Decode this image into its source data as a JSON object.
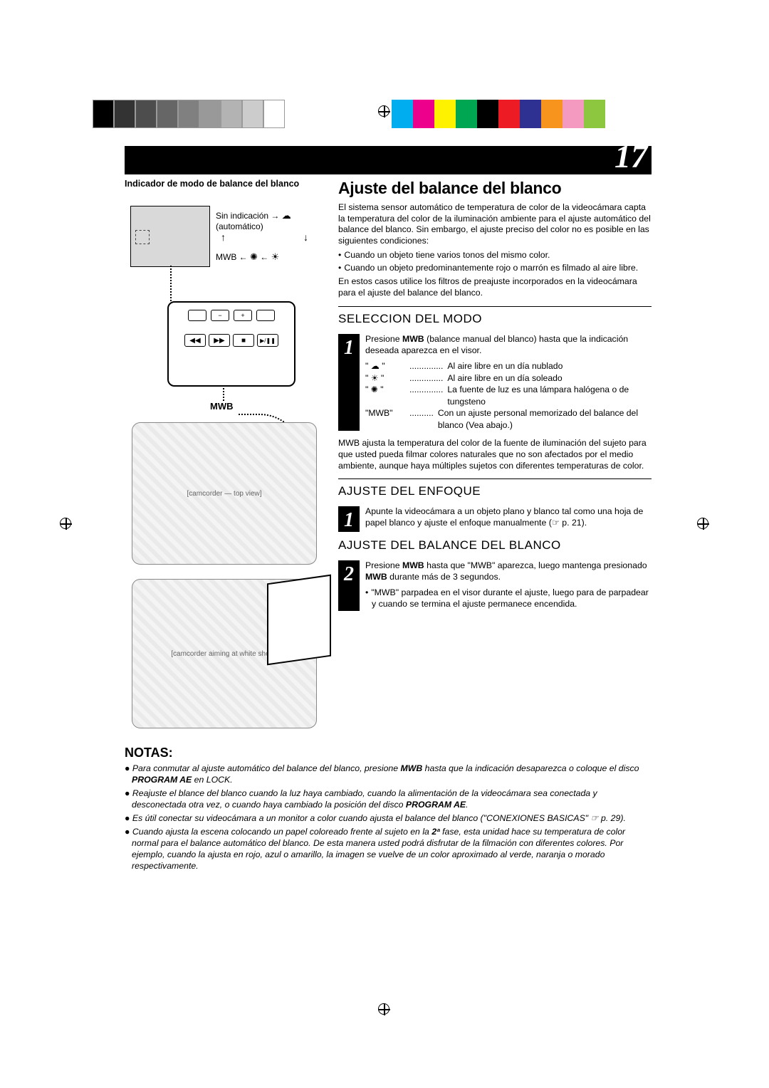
{
  "pageNumber": "17",
  "registration": {
    "leftBars": [
      "#000000",
      "#333333",
      "#4d4d4d",
      "#666666",
      "#808080",
      "#999999",
      "#b3b3b3",
      "#cccccc",
      "#ffffff"
    ],
    "rightBars": [
      "#00aeef",
      "#ec008c",
      "#fff200",
      "#00a651",
      "#000000",
      "#ed1c24",
      "#2e3192",
      "#f7941d",
      "#f49ac1",
      "#8dc63f"
    ]
  },
  "leftPanel": {
    "indicatorTitle": "Indicador de modo de balance del blanco",
    "sinIndicacion": "Sin indicación",
    "automatico": "(automático)",
    "mwbLine": "MWB",
    "mwbButton": "MWB",
    "controlPanel": {
      "row1": [
        "",
        "−",
        "+",
        ""
      ],
      "row2": [
        "◀◀",
        "▶▶",
        "■",
        "▶/❚❚"
      ]
    }
  },
  "main": {
    "title": "Ajuste del balance del blanco",
    "intro1": "El sistema sensor automático de temperatura de color de la videocámara capta la temperatura del color de la iluminación ambiente para el ajuste automático del balance del blanco. Sin embargo, el ajuste preciso del color no es posible en las siguientes condiciones:",
    "introBullets": [
      "Cuando un objeto tiene varios tonos del mismo color.",
      "Cuando un objeto predominantemente rojo o marrón es filmado al aire libre."
    ],
    "intro2": "En estos casos utilice los filtros de preajuste incorporados en la videocámara para el ajuste del balance del blanco.",
    "step1": {
      "num": "1",
      "title": "SELECCION DEL MODO",
      "text": "Presione MWB (balance manual del blanco) hasta que la indicación deseada aparezca en el visor.",
      "modes": [
        {
          "sym": "\" ☁ \"",
          "dots": "..............",
          "desc": "Al aire libre en un día nublado"
        },
        {
          "sym": "\" ☀ \"",
          "dots": "..............",
          "desc": "Al aire libre en un día soleado"
        },
        {
          "sym": "\" ✺ \"",
          "dots": "..............",
          "desc": "La fuente de luz es una lámpara halógena o de tungsteno"
        },
        {
          "sym": "\"MWB\"",
          "dots": "..........",
          "desc": "Con un ajuste personal memorizado del balance del blanco (Vea abajo.)"
        }
      ]
    },
    "mwbPara": "MWB ajusta la temperatura del color de la fuente de iluminación del sujeto para que usted pueda filmar colores naturales que no son afectados por el medio ambiente, aunque haya múltiples sujetos con diferentes temperaturas de color.",
    "step2": {
      "num": "1",
      "title": "AJUSTE DEL ENFOQUE",
      "text": "Apunte la videocámara a un objeto plano y blanco tal como una hoja de papel blanco y ajuste el enfoque manualmente (☞ p. 21)."
    },
    "step3": {
      "num": "2",
      "title": "AJUSTE DEL BALANCE DEL BLANCO",
      "text": "Presione MWB hasta que \"MWB\" aparezca, luego mantenga presionado MWB durante más de 3 segundos.",
      "bullet": "\"MWB\" parpadea en el visor durante el ajuste, luego para de parpadear y cuando se termina el ajuste permanece encendida."
    }
  },
  "notas": {
    "title": "NOTAS:",
    "items": [
      "Para conmutar al ajuste automático del balance del blanco, presione <b>MWB</b> hasta que la indicación desaparezca o coloque el disco <b>PROGRAM AE</b> en LOCK.",
      "Reajuste el blance del blanco cuando la luz haya cambiado, cuando la alimentación de la videocámara sea conectada y desconectada otra vez, o cuando haya cambiado la posición del disco <b>PROGRAM AE</b>.",
      "Es útil conectar su videocámara a un monitor a color cuando ajusta el balance del blanco (\"CONEXIONES BASICAS\" ☞ p. 29).",
      "Cuando ajusta la escena colocando un papel coloreado frente al sujeto en la <b>2ª</b> fase, esta unidad hace su temperatura de color normal para el balance automático del blanco. De esta manera usted podrá disfrutar de la filmación con diferentes colores. Por ejemplo, cuando la ajusta en rojo, azul o amarillo, la imagen se vuelve de un color aproximado al verde, naranja o morado respectivamente."
    ]
  }
}
